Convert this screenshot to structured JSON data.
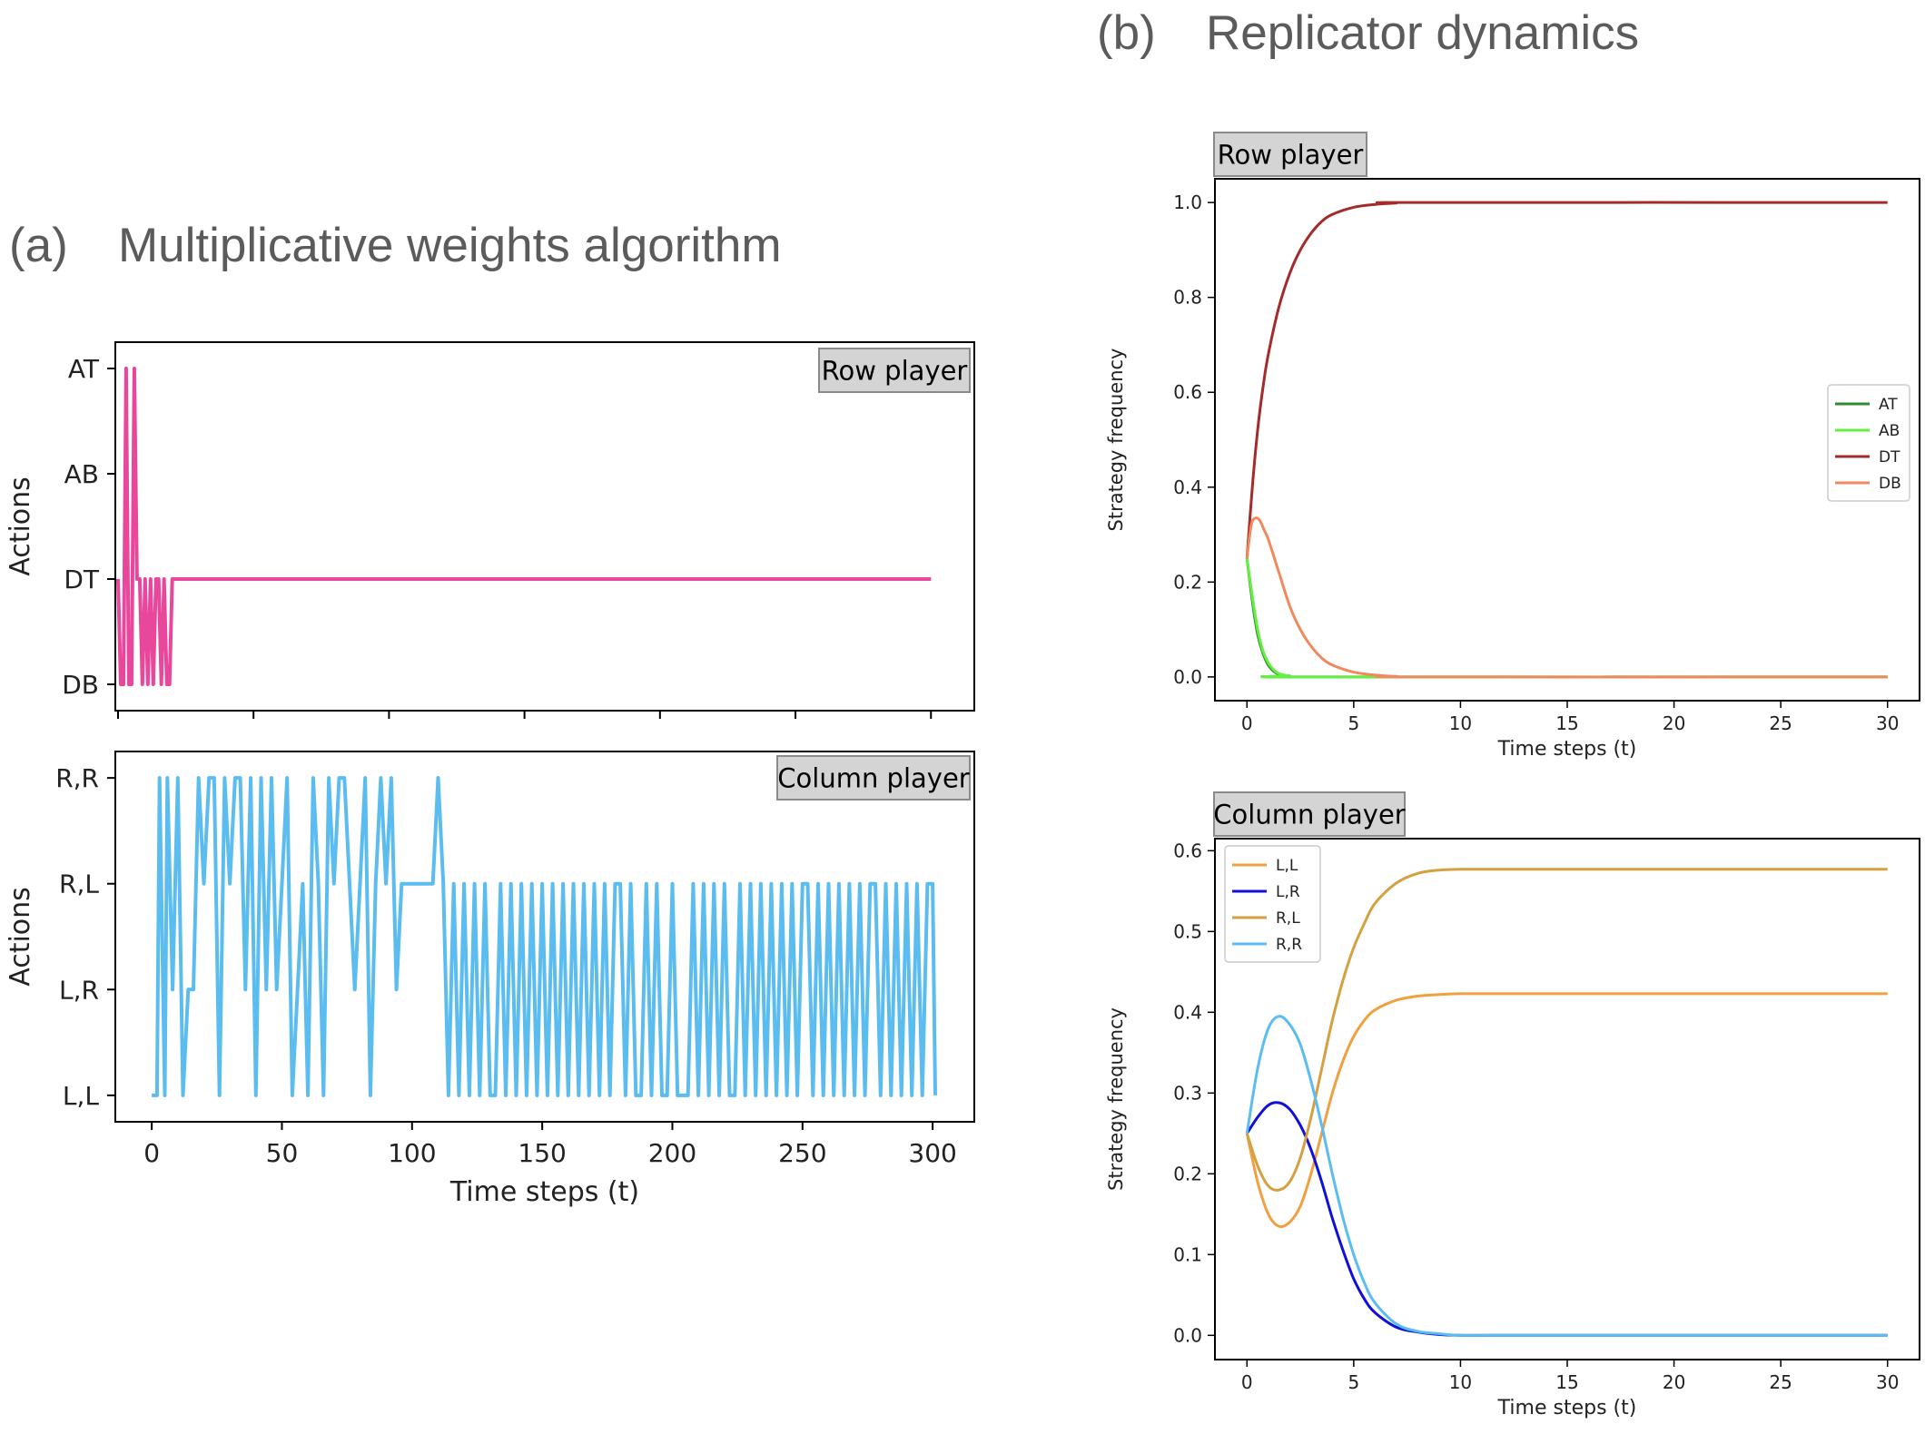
{
  "panels": {
    "a": {
      "letter": "(a)",
      "title": "Multiplicative weights algorithm"
    },
    "b": {
      "letter": "(b)",
      "title": "Replicator dynamics"
    }
  },
  "colors": {
    "mwa_row": "#e8479c",
    "mwa_col": "#5bbcf0",
    "AT": "#2e8b2e",
    "AB": "#66ee44",
    "DT": "#a52a2a",
    "DB": "#f08a5e",
    "LL": "#f0a040",
    "LR": "#1010d8",
    "RL": "#d4a040",
    "RR": "#5bbcf0"
  },
  "chart_data": [
    {
      "id": "mwa_row",
      "type": "line",
      "label": "Row player",
      "ylabel": "Actions",
      "categories": [
        "DB",
        "DT",
        "AB",
        "AT"
      ],
      "xlim": [
        -1,
        316
      ],
      "xticks": [
        0,
        50,
        100,
        150,
        200,
        250,
        300
      ],
      "series": [
        {
          "name": "Row player actions",
          "x": [
            0,
            1,
            2,
            3,
            4,
            5,
            6,
            7,
            8,
            9,
            10,
            11,
            12,
            13,
            14,
            15,
            16,
            17,
            18,
            19,
            20,
            21,
            300
          ],
          "values": [
            1,
            0,
            0,
            3,
            0,
            0,
            3,
            1,
            1,
            0,
            1,
            0,
            1,
            0,
            1,
            1,
            0,
            1,
            0,
            0,
            1,
            1,
            1
          ]
        }
      ]
    },
    {
      "id": "mwa_col",
      "type": "line",
      "label": "Column player",
      "ylabel": "Actions",
      "xlabel": "Time steps (t)",
      "categories": [
        "L,L",
        "L,R",
        "R,L",
        "R,R"
      ],
      "xlim": [
        -14,
        316
      ],
      "xticks": [
        0,
        50,
        100,
        150,
        200,
        250,
        300
      ],
      "series": [
        {
          "name": "Column player actions",
          "x": [
            0,
            2,
            3,
            5,
            6,
            8,
            10,
            12,
            14,
            16,
            18,
            20,
            22,
            24,
            26,
            28,
            30,
            32,
            34,
            36,
            38,
            40,
            42,
            44,
            46,
            48,
            50,
            52,
            54,
            56,
            58,
            60,
            62,
            64,
            66,
            68,
            70,
            72,
            74,
            76,
            78,
            80,
            82,
            84,
            86,
            88,
            90,
            92,
            94,
            96,
            98,
            100,
            102,
            104,
            106,
            108,
            110,
            112,
            114,
            116,
            118,
            120,
            122,
            124,
            126,
            128,
            130,
            132,
            134,
            136,
            138,
            140,
            142,
            144,
            146,
            148,
            150,
            152,
            154,
            156,
            158,
            160,
            162,
            164,
            166,
            168,
            170,
            172,
            174,
            176,
            178,
            180,
            182,
            184,
            186,
            188,
            190,
            192,
            194,
            196,
            198,
            200,
            202,
            204,
            206,
            208,
            210,
            212,
            214,
            216,
            218,
            220,
            222,
            224,
            226,
            228,
            230,
            232,
            234,
            236,
            238,
            240,
            242,
            244,
            246,
            248,
            250,
            252,
            254,
            256,
            258,
            260,
            262,
            264,
            266,
            268,
            270,
            272,
            274,
            276,
            278,
            280,
            282,
            284,
            286,
            288,
            290,
            292,
            294,
            296,
            298,
            300,
            301
          ],
          "values": [
            0,
            0,
            3,
            0,
            3,
            1,
            3,
            0,
            1,
            1,
            3,
            2,
            3,
            3,
            0,
            3,
            2,
            3,
            3,
            1,
            3,
            0,
            3,
            1,
            3,
            1,
            2,
            3,
            0,
            1,
            2,
            0,
            3,
            2,
            0,
            3,
            2,
            3,
            3,
            2,
            1,
            2,
            3,
            0,
            2,
            3,
            2,
            3,
            1,
            2,
            2,
            2,
            2,
            2,
            2,
            2,
            3,
            2,
            0,
            2,
            0,
            2,
            0,
            2,
            0,
            2,
            0,
            0,
            2,
            0,
            2,
            0,
            2,
            0,
            2,
            0,
            2,
            0,
            2,
            0,
            2,
            0,
            2,
            0,
            2,
            0,
            2,
            0,
            2,
            0,
            2,
            2,
            0,
            2,
            0,
            0,
            2,
            0,
            2,
            0,
            0,
            2,
            0,
            0,
            0,
            2,
            0,
            2,
            0,
            2,
            0,
            2,
            0,
            0,
            2,
            0,
            2,
            0,
            2,
            0,
            2,
            0,
            2,
            0,
            2,
            0,
            2,
            2,
            0,
            2,
            0,
            2,
            0,
            2,
            0,
            2,
            0,
            2,
            0,
            2,
            2,
            0,
            2,
            0,
            2,
            0,
            2,
            0,
            2,
            0,
            2,
            2,
            0
          ]
        }
      ]
    },
    {
      "id": "rep_row",
      "type": "line",
      "label": "Row player",
      "ylabel": "Strategy frequency",
      "xlabel": "Time steps (t)",
      "xlim": [
        -1.5,
        31.5
      ],
      "ylim": [
        -0.05,
        1.05
      ],
      "xticks": [
        0,
        5,
        10,
        15,
        20,
        25,
        30
      ],
      "yticks": [
        "0.0",
        "0.2",
        "0.4",
        "0.6",
        "0.8",
        "1.0"
      ],
      "legend": "center-right",
      "series": [
        {
          "name": "AT",
          "x": [
            0,
            0.25,
            0.5,
            0.75,
            1,
            1.25,
            1.5,
            2,
            3,
            30
          ],
          "values": [
            0.25,
            0.16,
            0.09,
            0.05,
            0.025,
            0.012,
            0.006,
            0.002,
            0,
            0
          ]
        },
        {
          "name": "AB",
          "x": [
            0,
            0.25,
            0.5,
            0.75,
            1,
            1.25,
            1.5,
            2,
            3,
            30
          ],
          "values": [
            0.25,
            0.17,
            0.1,
            0.055,
            0.03,
            0.015,
            0.007,
            0.002,
            0,
            0
          ]
        },
        {
          "name": "DT",
          "x": [
            0,
            0.25,
            0.5,
            0.75,
            1,
            1.5,
            2,
            2.5,
            3,
            3.5,
            4,
            5,
            6,
            7,
            8,
            30
          ],
          "values": [
            0.25,
            0.4,
            0.52,
            0.61,
            0.68,
            0.78,
            0.85,
            0.9,
            0.935,
            0.96,
            0.975,
            0.99,
            0.996,
            0.999,
            1,
            1
          ]
        },
        {
          "name": "DB",
          "x": [
            0,
            0.2,
            0.4,
            0.6,
            0.8,
            1,
            1.5,
            2,
            2.5,
            3,
            3.5,
            4,
            5,
            6,
            7,
            8,
            30
          ],
          "values": [
            0.25,
            0.32,
            0.335,
            0.33,
            0.31,
            0.29,
            0.22,
            0.15,
            0.1,
            0.065,
            0.04,
            0.025,
            0.01,
            0.004,
            0.001,
            0,
            0
          ]
        }
      ]
    },
    {
      "id": "rep_col",
      "type": "line",
      "label": "Column player",
      "ylabel": "Strategy frequency",
      "xlabel": "Time steps (t)",
      "xlim": [
        -1.5,
        31.5
      ],
      "ylim": [
        -0.03,
        0.615
      ],
      "xticks": [
        0,
        5,
        10,
        15,
        20,
        25,
        30
      ],
      "yticks": [
        "0.0",
        "0.1",
        "0.2",
        "0.3",
        "0.4",
        "0.5",
        "0.6"
      ],
      "legend": "top-left",
      "series": [
        {
          "name": "L,L",
          "x": [
            0,
            0.5,
            1,
            1.5,
            2,
            2.5,
            3,
            3.5,
            4,
            4.5,
            5,
            5.5,
            6,
            7,
            8,
            9,
            10,
            12,
            30
          ],
          "values": [
            0.25,
            0.19,
            0.15,
            0.135,
            0.14,
            0.16,
            0.2,
            0.25,
            0.3,
            0.34,
            0.37,
            0.39,
            0.403,
            0.415,
            0.42,
            0.422,
            0.423,
            0.423,
            0.423
          ]
        },
        {
          "name": "L,R",
          "x": [
            0,
            0.5,
            1,
            1.5,
            2,
            2.5,
            3,
            3.5,
            4,
            4.5,
            5,
            5.5,
            6,
            7,
            8,
            9,
            10,
            12,
            30
          ],
          "values": [
            0.25,
            0.27,
            0.285,
            0.288,
            0.28,
            0.26,
            0.23,
            0.19,
            0.145,
            0.105,
            0.07,
            0.045,
            0.028,
            0.01,
            0.004,
            0.001,
            0,
            0,
            0
          ]
        },
        {
          "name": "R,L",
          "x": [
            0,
            0.5,
            1,
            1.5,
            2,
            2.5,
            3,
            3.5,
            4,
            4.5,
            5,
            5.5,
            6,
            7,
            8,
            9,
            10,
            12,
            30
          ],
          "values": [
            0.25,
            0.21,
            0.185,
            0.18,
            0.19,
            0.22,
            0.27,
            0.33,
            0.39,
            0.44,
            0.48,
            0.51,
            0.535,
            0.56,
            0.572,
            0.576,
            0.577,
            0.577,
            0.577
          ]
        },
        {
          "name": "R,R",
          "x": [
            0,
            0.5,
            1,
            1.5,
            2,
            2.5,
            3,
            3.5,
            4,
            4.5,
            5,
            5.5,
            6,
            7,
            8,
            9,
            10,
            12,
            30
          ],
          "values": [
            0.25,
            0.33,
            0.38,
            0.395,
            0.385,
            0.36,
            0.315,
            0.26,
            0.2,
            0.145,
            0.1,
            0.065,
            0.04,
            0.014,
            0.005,
            0.002,
            0,
            0,
            0
          ]
        }
      ]
    }
  ]
}
